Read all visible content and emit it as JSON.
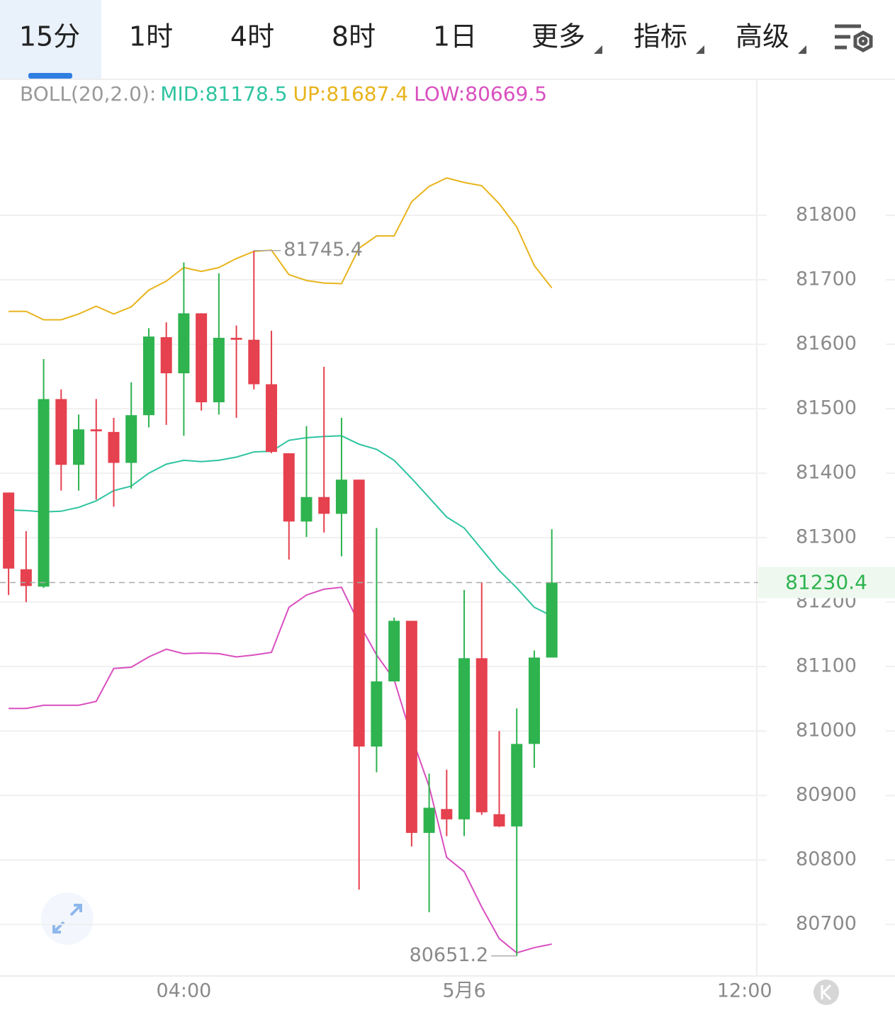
{
  "tabs": [
    "15分",
    "1时",
    "4时",
    "8时",
    "1日",
    "更多",
    "指标",
    "高级"
  ],
  "selected_tab": 0,
  "indicator": {
    "name": "BOLL(20,2.0):",
    "items": [
      {
        "label": "MID:",
        "value": 81178.5,
        "color": "#2ec4a0"
      },
      {
        "label": "UP:",
        "value": 81687.4,
        "color": "#e8b41c"
      },
      {
        "label": "LOW:",
        "value": 80669.5,
        "color": "#d94fbf"
      }
    ]
  },
  "chart_data": {
    "type": "candlestick",
    "candles": [
      {
        "open": 81370,
        "high": 81370,
        "low": 81211,
        "close": 81252
      },
      {
        "open": 81251,
        "high": 81310,
        "low": 81200,
        "close": 81225
      },
      {
        "open": 81224,
        "high": 81577,
        "low": 81222,
        "close": 81515
      },
      {
        "open": 81515,
        "high": 81530,
        "low": 81373,
        "close": 81413
      },
      {
        "open": 81413,
        "high": 81491,
        "low": 81373,
        "close": 81468
      },
      {
        "open": 81468,
        "high": 81515,
        "low": 81359,
        "close": 81465
      },
      {
        "open": 81464,
        "high": 81486,
        "low": 81348,
        "close": 81416
      },
      {
        "open": 81416,
        "high": 81541,
        "low": 81376,
        "close": 81490
      },
      {
        "open": 81490,
        "high": 81625,
        "low": 81471,
        "close": 81612
      },
      {
        "open": 81611,
        "high": 81634,
        "low": 81475,
        "close": 81555
      },
      {
        "open": 81555,
        "high": 81727,
        "low": 81458,
        "close": 81648
      },
      {
        "open": 81648,
        "high": 81648,
        "low": 81497,
        "close": 81510
      },
      {
        "open": 81510,
        "high": 81710,
        "low": 81491,
        "close": 81610
      },
      {
        "open": 81610,
        "high": 81629,
        "low": 81486,
        "close": 81607
      },
      {
        "open": 81607,
        "high": 81745.4,
        "low": 81530,
        "close": 81538
      },
      {
        "open": 81538,
        "high": 81621,
        "low": 81431,
        "close": 81433
      },
      {
        "open": 81431,
        "high": 81431,
        "low": 81266,
        "close": 81325
      },
      {
        "open": 81325,
        "high": 81473,
        "low": 81301,
        "close": 81363
      },
      {
        "open": 81363,
        "high": 81565,
        "low": 81308,
        "close": 81337
      },
      {
        "open": 81337,
        "high": 81486,
        "low": 81271,
        "close": 81390
      },
      {
        "open": 81390,
        "high": 81390,
        "low": 80754,
        "close": 80976
      },
      {
        "open": 80976,
        "high": 81315,
        "low": 80936,
        "close": 81077
      },
      {
        "open": 81077,
        "high": 81176,
        "low": 81077,
        "close": 81171
      },
      {
        "open": 81171,
        "high": 81171,
        "low": 80821,
        "close": 80842
      },
      {
        "open": 80842,
        "high": 80934,
        "low": 80719,
        "close": 80881
      },
      {
        "open": 80879,
        "high": 80940,
        "low": 80837,
        "close": 80863
      },
      {
        "open": 80863,
        "high": 81219,
        "low": 80837,
        "close": 81113
      },
      {
        "open": 81113,
        "high": 81231,
        "low": 80870,
        "close": 80874
      },
      {
        "open": 80871,
        "high": 81000,
        "low": 80851,
        "close": 80852
      },
      {
        "open": 80852,
        "high": 81035,
        "low": 80651.2,
        "close": 80980
      },
      {
        "open": 80980,
        "high": 81125,
        "low": 80943,
        "close": 81114
      },
      {
        "open": 81114,
        "high": 81313,
        "low": 81114,
        "close": 81230.4
      }
    ],
    "series": [
      {
        "color": "#2ec4a0",
        "values": [
          81343,
          81342,
          81340,
          81341,
          81347,
          81357,
          81373,
          81380,
          81400,
          81414,
          81420,
          81418,
          81420,
          81425,
          81433,
          81434,
          81451,
          81455,
          81457,
          81458,
          81445,
          81437,
          81420,
          81392,
          81362,
          81332,
          81315,
          81282,
          81249,
          81222,
          81192,
          81178.5
        ]
      },
      {
        "color": "#e8b41c",
        "values": [
          81651,
          81651,
          81638,
          81638,
          81647,
          81659,
          81647,
          81658,
          81684,
          81698,
          81719,
          81713,
          81719,
          81733,
          81744,
          81746,
          81708,
          81699,
          81695,
          81694,
          81749,
          81768,
          81768,
          81821,
          81845,
          81858,
          81851,
          81846,
          81818,
          81782,
          81722,
          81687.4
        ]
      },
      {
        "color": "#d94fbf",
        "values": [
          81035,
          81035,
          81040,
          81040,
          81040,
          81046,
          81097,
          81099,
          81115,
          81127,
          81120,
          81121,
          81120,
          81115,
          81118,
          81122,
          81192,
          81211,
          81220,
          81223,
          81167,
          81118,
          81080,
          80991,
          80914,
          80804,
          80782,
          80727,
          80678,
          80656,
          80664,
          80669.5
        ]
      }
    ],
    "up_color": "#2eb34f",
    "down_color": "#e5414e",
    "ylim": [
      80620,
      82011
    ],
    "yticks": [
      80700,
      80800,
      80900,
      81000,
      81100,
      81200,
      81300,
      81400,
      81500,
      81600,
      81700,
      81800
    ],
    "xlim": [
      -0.49,
      42.7
    ],
    "xticks": [
      {
        "value": 10,
        "label": "04:00"
      },
      {
        "value": 26,
        "label": "5月6"
      },
      {
        "value": 42,
        "label": "12:00"
      }
    ],
    "grid": true
  }
}
